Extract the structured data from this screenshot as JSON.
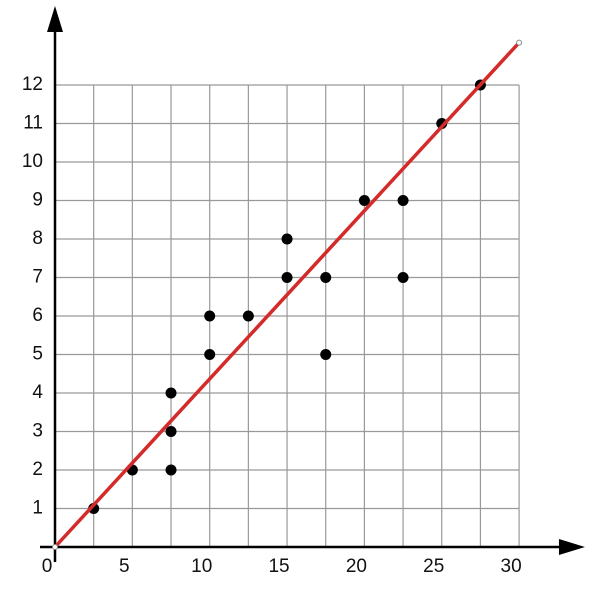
{
  "chart_data": {
    "type": "scatter",
    "x": [
      2.5,
      5,
      7.5,
      7.5,
      7.5,
      10,
      10,
      12.5,
      15,
      15,
      17.5,
      17.5,
      20,
      22.5,
      22.5,
      25,
      27.5
    ],
    "values": [
      1,
      2,
      2,
      3,
      4,
      5,
      6,
      6,
      7,
      8,
      7,
      5,
      9,
      9,
      7,
      11,
      12
    ],
    "color": "#000000",
    "trend_line": {
      "x": [
        0,
        30
      ],
      "y": [
        0,
        13.1
      ],
      "color": "#d42a2a"
    },
    "xlim": [
      0,
      34
    ],
    "ylim": [
      0,
      14
    ],
    "xticks": [
      0,
      5,
      10,
      15,
      20,
      25,
      30
    ],
    "yticks": [
      1,
      2,
      3,
      4,
      5,
      6,
      7,
      8,
      9,
      10,
      11,
      12
    ],
    "xgrid": [
      0,
      2.5,
      5,
      7.5,
      10,
      12.5,
      15,
      17.5,
      20,
      22.5,
      25,
      27.5,
      30
    ],
    "grid": true
  }
}
